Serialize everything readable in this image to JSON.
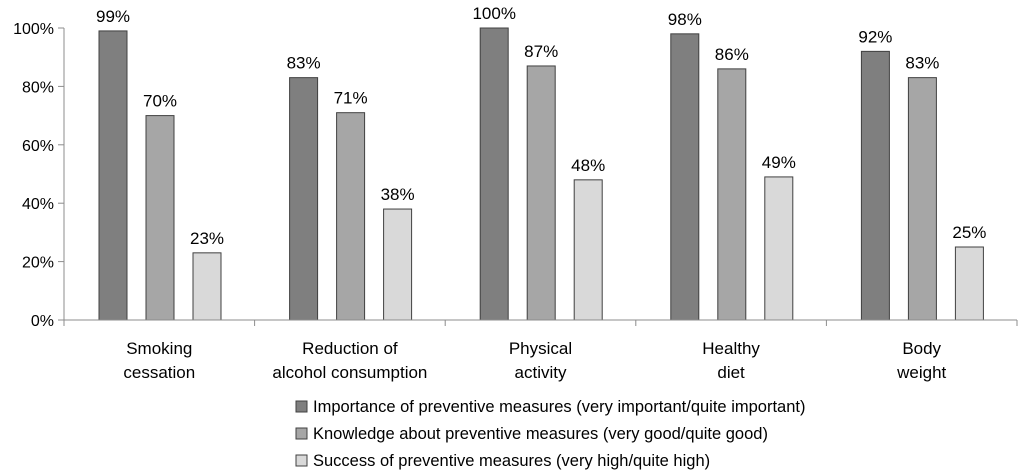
{
  "chart_data": {
    "type": "bar",
    "categories": [
      [
        "Smoking",
        "cessation"
      ],
      [
        "Reduction of",
        "alcohol consumption"
      ],
      [
        "Physical",
        "activity"
      ],
      [
        "Healthy",
        "diet"
      ],
      [
        "Body",
        "weight"
      ]
    ],
    "series": [
      {
        "name": "Importance of preventive measures (very important/quite important)",
        "values": [
          99,
          83,
          100,
          98,
          92
        ],
        "color": "#7f7f7f"
      },
      {
        "name": "Knowledge about preventive measures (very good/quite good)",
        "values": [
          70,
          71,
          87,
          86,
          83
        ],
        "color": "#a6a6a6"
      },
      {
        "name": "Success of preventive measures (very high/quite high)",
        "values": [
          23,
          38,
          48,
          49,
          25
        ],
        "color": "#d9d9d9"
      }
    ],
    "y_ticks": [
      "0%",
      "20%",
      "40%",
      "60%",
      "80%",
      "100%"
    ],
    "ylim": [
      0,
      100
    ],
    "value_suffix": "%",
    "legend_position": "bottom"
  }
}
